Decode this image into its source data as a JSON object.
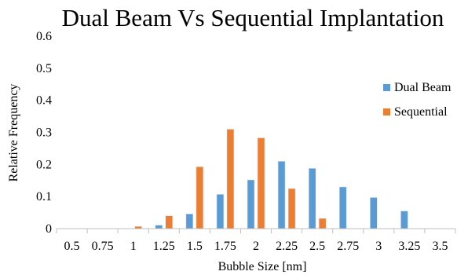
{
  "chart_data": {
    "type": "bar",
    "title": "Dual Beam Vs Sequential Implantation",
    "xlabel": "Bubble Size [nm]",
    "ylabel": "Relative Frequency",
    "categories": [
      "0.5",
      "0.75",
      "1",
      "1.25",
      "1.5",
      "1.75",
      "2",
      "2.25",
      "2.5",
      "2.75",
      "3",
      "3.25",
      "3.5"
    ],
    "ylim": [
      0,
      0.6
    ],
    "yticks": [
      "0",
      "0.1",
      "0.2",
      "0.3",
      "0.4",
      "0.5",
      "0.6"
    ],
    "grid": false,
    "legend_position": "right",
    "series": [
      {
        "name": "Dual Beam",
        "color": "#5B9BD5",
        "values": [
          0,
          0,
          0,
          0.011,
          0.046,
          0.107,
          0.152,
          0.21,
          0.188,
          0.13,
          0.097,
          0.055,
          0
        ]
      },
      {
        "name": "Sequential",
        "color": "#ED7D31",
        "values": [
          0,
          0,
          0.007,
          0.04,
          0.193,
          0.31,
          0.283,
          0.125,
          0.032,
          0,
          0,
          0,
          0
        ]
      }
    ]
  }
}
